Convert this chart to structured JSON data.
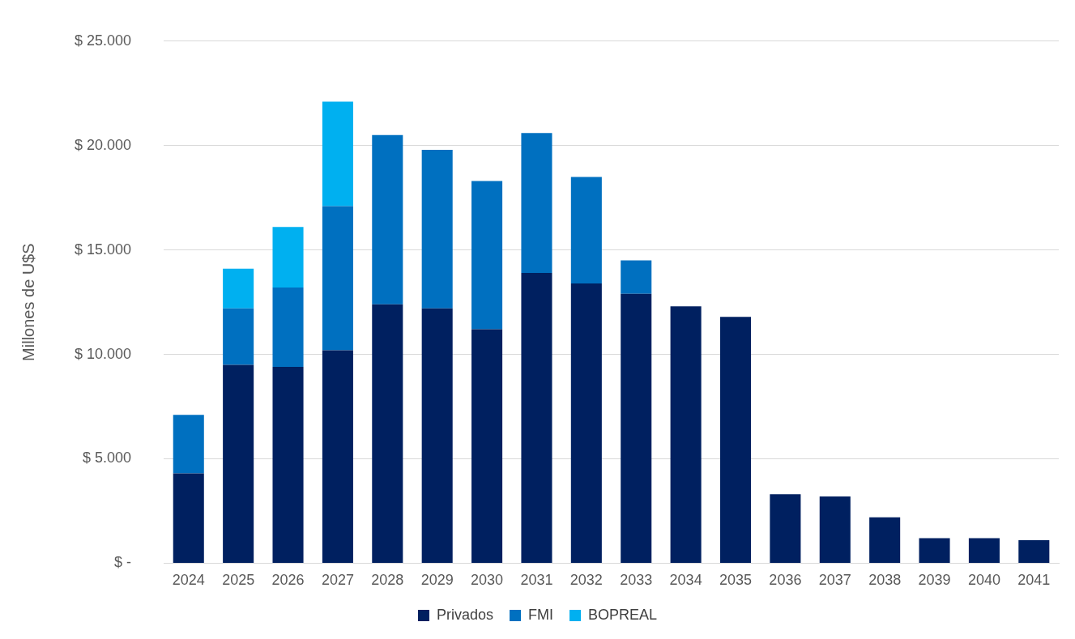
{
  "chart_data": {
    "type": "bar",
    "stacked": true,
    "ylabel": "Millones de U$S",
    "categories": [
      "2024",
      "2025",
      "2026",
      "2027",
      "2028",
      "2029",
      "2030",
      "2031",
      "2032",
      "2033",
      "2034",
      "2035",
      "2036",
      "2037",
      "2038",
      "2039",
      "2040",
      "2041"
    ],
    "series": [
      {
        "name": "Privados",
        "color": "#002060",
        "values": [
          4300,
          9500,
          9400,
          10200,
          12400,
          12200,
          11200,
          13900,
          13400,
          12900,
          12300,
          11800,
          3300,
          3200,
          2200,
          1200,
          1200,
          1100
        ]
      },
      {
        "name": "FMI",
        "color": "#0070c0",
        "values": [
          2800,
          2700,
          3800,
          6900,
          8100,
          7600,
          7100,
          6700,
          5100,
          1600,
          null,
          null,
          null,
          null,
          null,
          null,
          null,
          null
        ]
      },
      {
        "name": "BOPREAL",
        "color": "#00b0f0",
        "values": [
          null,
          1900,
          2900,
          5000,
          null,
          null,
          null,
          null,
          null,
          null,
          null,
          null,
          null,
          null,
          null,
          null,
          null,
          null
        ]
      }
    ],
    "ylim": [
      0,
      25000
    ],
    "yticks": [
      {
        "value": 0,
        "label": "$ -"
      },
      {
        "value": 5000,
        "label": "$ 5.000"
      },
      {
        "value": 10000,
        "label": "$ 10.000"
      },
      {
        "value": 15000,
        "label": "$ 15.000"
      },
      {
        "value": 20000,
        "label": "$ 20.000"
      },
      {
        "value": 25000,
        "label": "$ 25.000"
      }
    ],
    "grid": "y",
    "legend": "bottom"
  }
}
